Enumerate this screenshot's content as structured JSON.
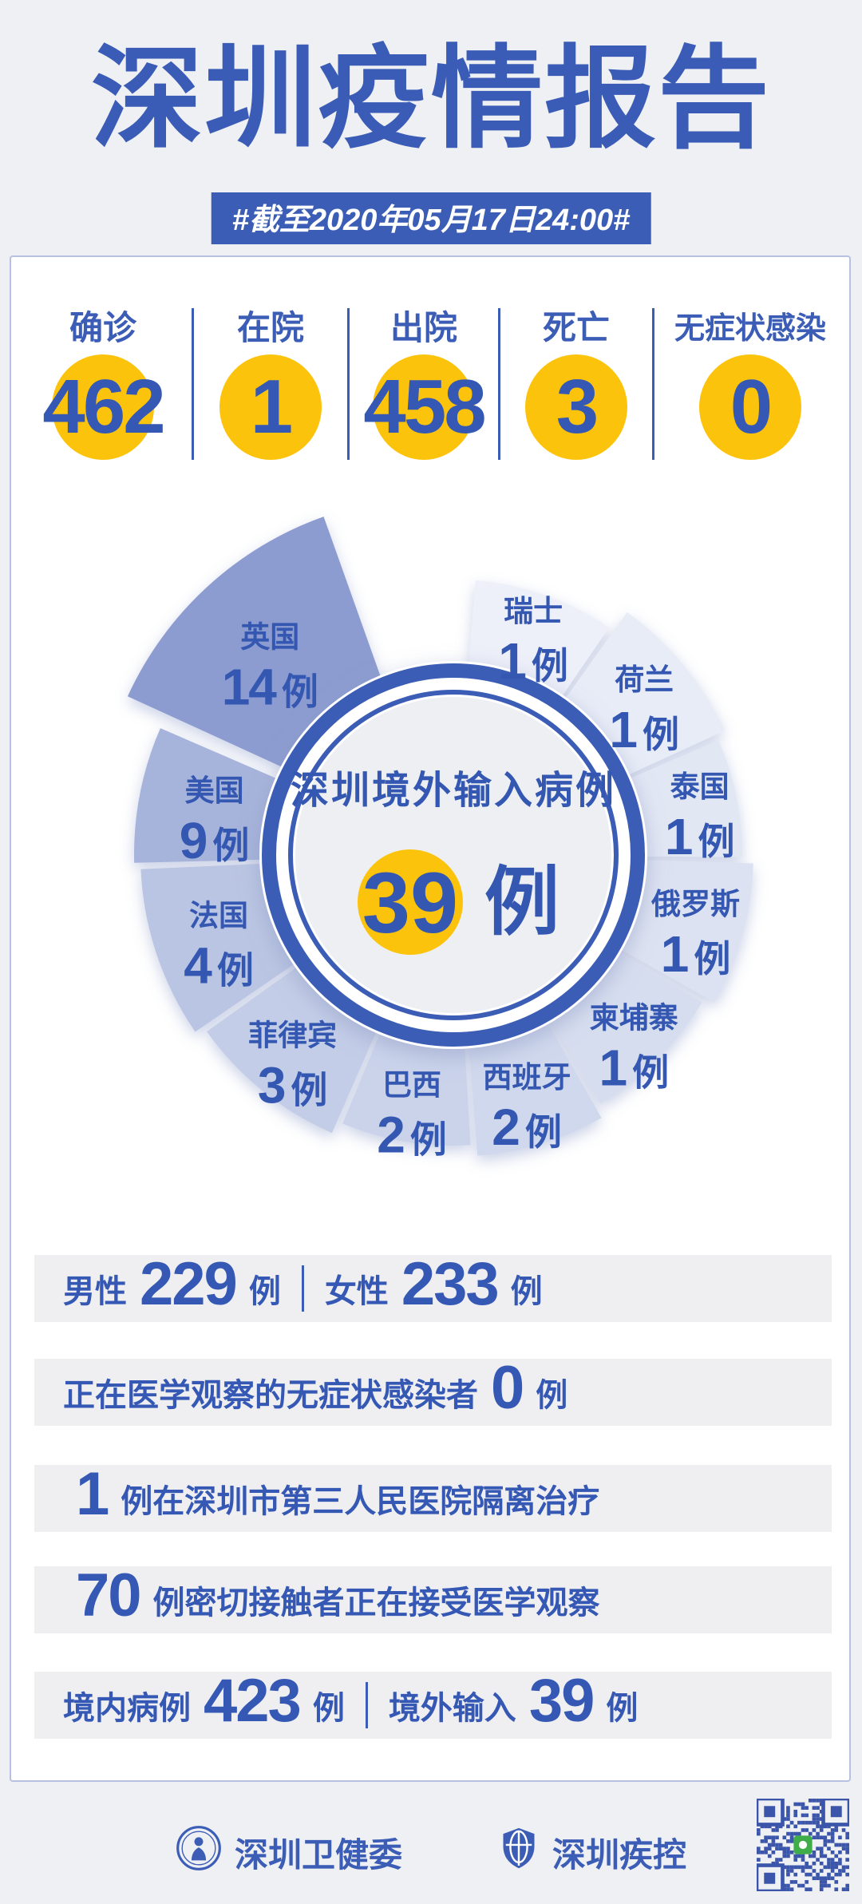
{
  "header": {
    "title": "深圳疫情报告",
    "date_banner": "#截至2020年05月17日24:00#"
  },
  "stats": {
    "items": [
      {
        "key": "confirmed",
        "label": "确诊",
        "value": "462"
      },
      {
        "key": "in-hospital",
        "label": "在院",
        "value": "1"
      },
      {
        "key": "discharged",
        "label": "出院",
        "value": "458"
      },
      {
        "key": "deaths",
        "label": "死亡",
        "value": "3"
      },
      {
        "key": "asymptomatic",
        "label": "无症状感染",
        "value": "0"
      }
    ]
  },
  "chart_data": {
    "type": "pie",
    "title": "深圳境外输入病例",
    "center_value": "39",
    "center_unit": "例",
    "total": 39,
    "unit": "例",
    "categories": [
      "瑞士",
      "荷兰",
      "泰国",
      "俄罗斯",
      "柬埔寨",
      "西班牙",
      "巴西",
      "菲律宾",
      "法国",
      "美国",
      "英国"
    ],
    "values": [
      1,
      1,
      1,
      1,
      1,
      2,
      2,
      3,
      4,
      9,
      14
    ],
    "legend_position": "labels-on-slices",
    "slices": [
      {
        "name": "瑞士",
        "value": 1,
        "color": "#edeff9",
        "r": 345,
        "a0": 4,
        "a1": 35,
        "label_r": 300
      },
      {
        "name": "荷兰",
        "value": 1,
        "color": "#e8ecf7",
        "r": 374,
        "a0": 35,
        "a1": 66,
        "label_r": 310
      },
      {
        "name": "泰国",
        "value": 1,
        "color": "#e2e7f4",
        "r": 362,
        "a0": 66,
        "a1": 91,
        "label_r": 315
      },
      {
        "name": "俄罗斯",
        "value": 1,
        "color": "#dce2f1",
        "r": 376,
        "a0": 91,
        "a1": 120,
        "label_r": 315
      },
      {
        "name": "柬埔寨",
        "value": 1,
        "color": "#d6ddef",
        "r": 362,
        "a0": 120,
        "a1": 150,
        "label_r": 320
      },
      {
        "name": "西班牙",
        "value": 2,
        "color": "#d0d8ed",
        "r": 378,
        "a0": 150,
        "a1": 176,
        "label_r": 315
      },
      {
        "name": "巴西",
        "value": 2,
        "color": "#cad3ea",
        "r": 364,
        "a0": 176,
        "a1": 203,
        "label_r": 315
      },
      {
        "name": "菲律宾",
        "value": 3,
        "color": "#c3cde7",
        "r": 380,
        "a0": 203,
        "a1": 235,
        "label_r": 320
      },
      {
        "name": "法国",
        "value": 4,
        "color": "#bac5e3",
        "r": 392,
        "a0": 235,
        "a1": 268,
        "label_r": 310
      },
      {
        "name": "美国",
        "value": 9,
        "color": "#a6b3da",
        "r": 400,
        "a0": 268,
        "a1": 294,
        "label_r": 305
      },
      {
        "name": "英国",
        "value": 14,
        "color": "#8c9cd0",
        "r": 428,
        "a0": 294,
        "a1": 341,
        "label_r": 312,
        "explode": 28
      }
    ]
  },
  "info_rows": [
    {
      "segments": [
        {
          "type": "label",
          "text": "男性"
        },
        {
          "type": "number",
          "text": "229"
        },
        {
          "type": "label",
          "text": "例"
        },
        {
          "type": "divider",
          "text": ""
        },
        {
          "type": "label",
          "text": "女性"
        },
        {
          "type": "number",
          "text": "233"
        },
        {
          "type": "label",
          "text": "例"
        }
      ]
    },
    {
      "segments": [
        {
          "type": "label",
          "text": "正在医学观察的无症状感染者"
        },
        {
          "type": "number",
          "text": "0"
        },
        {
          "type": "label",
          "text": "例"
        }
      ]
    },
    {
      "segments": [
        {
          "type": "number",
          "text": "1"
        },
        {
          "type": "label",
          "text": "例在深圳市第三人民医院隔离治疗"
        }
      ]
    },
    {
      "segments": [
        {
          "type": "number",
          "text": "70"
        },
        {
          "type": "label",
          "text": "例密切接触者正在接受医学观察"
        }
      ]
    },
    {
      "segments": [
        {
          "type": "label",
          "text": "境内病例"
        },
        {
          "type": "number",
          "text": "423"
        },
        {
          "type": "label",
          "text": "例"
        },
        {
          "type": "divider",
          "text": ""
        },
        {
          "type": "label",
          "text": "境外输入"
        },
        {
          "type": "number",
          "text": "39"
        },
        {
          "type": "label",
          "text": "例"
        }
      ]
    }
  ],
  "footer": {
    "brands": [
      {
        "icon": "shenzhen-health-commission-logo",
        "label": "深圳卫健委"
      },
      {
        "icon": "shenzhen-cdc-logo",
        "label": "深圳疾控"
      }
    ]
  },
  "colors": {
    "primary_blue": "#3c5db6",
    "deep_blue": "#3558b4",
    "accent_yellow": "#fcc30d",
    "page_bg": "#eff0f3",
    "band_bg": "#efeff2",
    "card_border": "#b7c1e1",
    "qr_blue": "#3a55aa",
    "qr_green": "#3fae49"
  }
}
